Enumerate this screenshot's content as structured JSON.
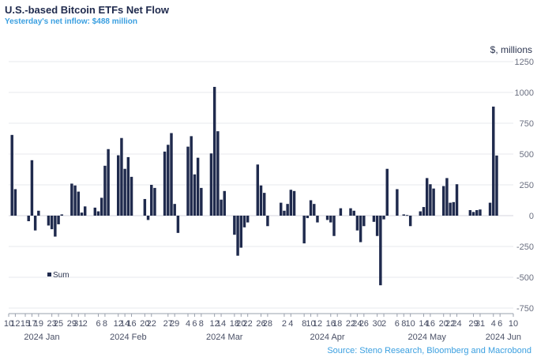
{
  "header": {
    "title": "U.S.-based Bitcoin ETFs Net Flow",
    "subtitle": "Yesterday's net inflow: $488 million",
    "unit": "$, millions",
    "source": "Source: Steno Research, Bloomberg and Macrobond"
  },
  "chart_data": {
    "type": "bar",
    "title": "U.S.-based Bitcoin ETFs Net Flow",
    "ylabel": "$, millions",
    "ylim": [
      -750,
      1250
    ],
    "yticks": [
      -750,
      -500,
      -250,
      0,
      250,
      500,
      750,
      1000,
      1250
    ],
    "ytick_labels": [
      "-750",
      "-500",
      "-250",
      "0",
      "250",
      "500",
      "750",
      "1000",
      "1250"
    ],
    "grid": true,
    "legend_position": "bottom-left",
    "bar_color": "#1f2a4d",
    "series": [
      {
        "name": "Sum",
        "points": [
          {
            "x": "2024-01-11",
            "y": 655
          },
          {
            "x": "2024-01-12",
            "y": 215
          },
          {
            "x": "2024-01-16",
            "y": -45
          },
          {
            "x": "2024-01-17",
            "y": 450
          },
          {
            "x": "2024-01-18",
            "y": -120
          },
          {
            "x": "2024-01-19",
            "y": 40
          },
          {
            "x": "2024-01-22",
            "y": -80
          },
          {
            "x": "2024-01-23",
            "y": -110
          },
          {
            "x": "2024-01-24",
            "y": -170
          },
          {
            "x": "2024-01-25",
            "y": -70
          },
          {
            "x": "2024-01-26",
            "y": 10
          },
          {
            "x": "2024-01-29",
            "y": 260
          },
          {
            "x": "2024-01-30",
            "y": 245
          },
          {
            "x": "2024-01-31",
            "y": 195
          },
          {
            "x": "2024-02-01",
            "y": 25
          },
          {
            "x": "2024-02-02",
            "y": 75
          },
          {
            "x": "2024-02-05",
            "y": 65
          },
          {
            "x": "2024-02-06",
            "y": 35
          },
          {
            "x": "2024-02-07",
            "y": 145
          },
          {
            "x": "2024-02-08",
            "y": 405
          },
          {
            "x": "2024-02-09",
            "y": 540
          },
          {
            "x": "2024-02-12",
            "y": 490
          },
          {
            "x": "2024-02-13",
            "y": 630
          },
          {
            "x": "2024-02-14",
            "y": 380
          },
          {
            "x": "2024-02-15",
            "y": 475
          },
          {
            "x": "2024-02-16",
            "y": 315
          },
          {
            "x": "2024-02-20",
            "y": 135
          },
          {
            "x": "2024-02-21",
            "y": -35
          },
          {
            "x": "2024-02-22",
            "y": 250
          },
          {
            "x": "2024-02-23",
            "y": 225
          },
          {
            "x": "2024-02-26",
            "y": 520
          },
          {
            "x": "2024-02-27",
            "y": 575
          },
          {
            "x": "2024-02-28",
            "y": 670
          },
          {
            "x": "2024-02-29",
            "y": 95
          },
          {
            "x": "2024-03-01",
            "y": -140
          },
          {
            "x": "2024-03-04",
            "y": 560
          },
          {
            "x": "2024-03-05",
            "y": 645
          },
          {
            "x": "2024-03-06",
            "y": 335
          },
          {
            "x": "2024-03-07",
            "y": 470
          },
          {
            "x": "2024-03-08",
            "y": 225
          },
          {
            "x": "2024-03-11",
            "y": 505
          },
          {
            "x": "2024-03-12",
            "y": 1045
          },
          {
            "x": "2024-03-13",
            "y": 685
          },
          {
            "x": "2024-03-14",
            "y": 130
          },
          {
            "x": "2024-03-15",
            "y": 200
          },
          {
            "x": "2024-03-18",
            "y": -155
          },
          {
            "x": "2024-03-19",
            "y": -325
          },
          {
            "x": "2024-03-20",
            "y": -260
          },
          {
            "x": "2024-03-21",
            "y": -95
          },
          {
            "x": "2024-03-22",
            "y": -55
          },
          {
            "x": "2024-03-25",
            "y": 415
          },
          {
            "x": "2024-03-26",
            "y": 245
          },
          {
            "x": "2024-03-27",
            "y": 185
          },
          {
            "x": "2024-03-28",
            "y": -85
          },
          {
            "x": "2024-04-01",
            "y": 105
          },
          {
            "x": "2024-04-02",
            "y": 40
          },
          {
            "x": "2024-04-03",
            "y": 95
          },
          {
            "x": "2024-04-04",
            "y": 210
          },
          {
            "x": "2024-04-05",
            "y": 200
          },
          {
            "x": "2024-04-08",
            "y": -225
          },
          {
            "x": "2024-04-09",
            "y": -20
          },
          {
            "x": "2024-04-10",
            "y": 125
          },
          {
            "x": "2024-04-11",
            "y": 95
          },
          {
            "x": "2024-04-12",
            "y": -55
          },
          {
            "x": "2024-04-15",
            "y": -35
          },
          {
            "x": "2024-04-16",
            "y": -55
          },
          {
            "x": "2024-04-17",
            "y": -165
          },
          {
            "x": "2024-04-18",
            "y": 0
          },
          {
            "x": "2024-04-19",
            "y": 60
          },
          {
            "x": "2024-04-22",
            "y": 60
          },
          {
            "x": "2024-04-23",
            "y": 40
          },
          {
            "x": "2024-04-24",
            "y": -120
          },
          {
            "x": "2024-04-25",
            "y": -215
          },
          {
            "x": "2024-04-26",
            "y": -85
          },
          {
            "x": "2024-04-29",
            "y": -50
          },
          {
            "x": "2024-04-30",
            "y": -165
          },
          {
            "x": "2024-05-01",
            "y": -565
          },
          {
            "x": "2024-05-02",
            "y": -30
          },
          {
            "x": "2024-05-03",
            "y": 380
          },
          {
            "x": "2024-05-06",
            "y": 215
          },
          {
            "x": "2024-05-07",
            "y": 0
          },
          {
            "x": "2024-05-08",
            "y": 10
          },
          {
            "x": "2024-05-09",
            "y": 5
          },
          {
            "x": "2024-05-10",
            "y": -85
          },
          {
            "x": "2024-05-13",
            "y": 35
          },
          {
            "x": "2024-05-14",
            "y": 70
          },
          {
            "x": "2024-05-15",
            "y": 305
          },
          {
            "x": "2024-05-16",
            "y": 255
          },
          {
            "x": "2024-05-17",
            "y": 220
          },
          {
            "x": "2024-05-20",
            "y": 240
          },
          {
            "x": "2024-05-21",
            "y": 305
          },
          {
            "x": "2024-05-22",
            "y": 105
          },
          {
            "x": "2024-05-23",
            "y": 110
          },
          {
            "x": "2024-05-24",
            "y": 255
          },
          {
            "x": "2024-05-28",
            "y": 45
          },
          {
            "x": "2024-05-29",
            "y": 30
          },
          {
            "x": "2024-05-30",
            "y": 45
          },
          {
            "x": "2024-05-31",
            "y": 50
          },
          {
            "x": "2024-06-03",
            "y": 105
          },
          {
            "x": "2024-06-04",
            "y": 885
          },
          {
            "x": "2024-06-05",
            "y": 488
          }
        ]
      }
    ],
    "x_axis": {
      "start": "2024-01-10",
      "end": "2024-06-10",
      "tick_dates": [
        "2024-01-10",
        "2024-01-12",
        "2024-01-15",
        "2024-01-17",
        "2024-01-19",
        "2024-01-23",
        "2024-01-25",
        "2024-01-29",
        "2024-01-31",
        "2024-02-02",
        "2024-02-06",
        "2024-02-08",
        "2024-02-12",
        "2024-02-14",
        "2024-02-16",
        "2024-02-20",
        "2024-02-22",
        "2024-02-27",
        "2024-02-29",
        "2024-03-04",
        "2024-03-06",
        "2024-03-08",
        "2024-03-12",
        "2024-03-14",
        "2024-03-18",
        "2024-03-20",
        "2024-03-22",
        "2024-03-26",
        "2024-03-28",
        "2024-04-02",
        "2024-04-04",
        "2024-04-08",
        "2024-04-10",
        "2024-04-12",
        "2024-04-16",
        "2024-04-18",
        "2024-04-22",
        "2024-04-24",
        "2024-04-26",
        "2024-04-30",
        "2024-05-02",
        "2024-05-06",
        "2024-05-08",
        "2024-05-10",
        "2024-05-14",
        "2024-05-16",
        "2024-05-20",
        "2024-05-22",
        "2024-05-24",
        "2024-05-29",
        "2024-05-31",
        "2024-06-04",
        "2024-06-06",
        "2024-06-10"
      ],
      "tick_labels": [
        "10",
        "12",
        "15",
        "17",
        "19",
        "23",
        "25",
        "29",
        "31",
        "2",
        "6",
        "8",
        "12",
        "14",
        "16",
        "20",
        "22",
        "27",
        "29",
        "4",
        "6",
        "8",
        "12",
        "14",
        "18",
        "20",
        "22",
        "26",
        "28",
        "2",
        "4",
        "8",
        "10",
        "12",
        "16",
        "18",
        "22",
        "24",
        "26",
        "30",
        "2",
        "6",
        "8",
        "10",
        "14",
        "16",
        "20",
        "22",
        "24",
        "29",
        "31",
        "4",
        "6",
        "10"
      ],
      "months": [
        {
          "label": "2024 Jan",
          "date": "2024-01-20"
        },
        {
          "label": "2024 Feb",
          "date": "2024-02-15"
        },
        {
          "label": "2024 Mar",
          "date": "2024-03-15"
        },
        {
          "label": "2024 Apr",
          "date": "2024-04-15"
        },
        {
          "label": "2024 May",
          "date": "2024-05-15"
        },
        {
          "label": "2024 Jun",
          "date": "2024-06-07"
        }
      ]
    }
  }
}
